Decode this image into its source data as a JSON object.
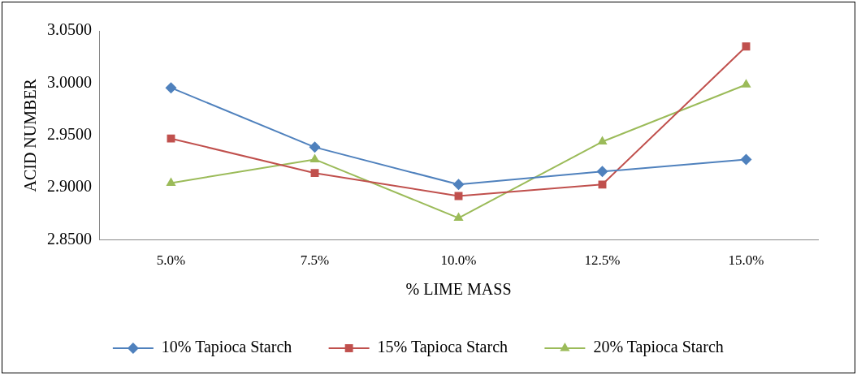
{
  "chart_data": {
    "type": "line",
    "xlabel": "% LIME MASS",
    "ylabel": "ACID NUMBER",
    "categories": [
      "5.0%",
      "7.5%",
      "10.0%",
      "12.5%",
      "15.0%"
    ],
    "series": [
      {
        "name": "10% Tapioca Starch",
        "color": "#4f81bd",
        "marker": "diamond",
        "values": [
          2.9955,
          2.9387,
          2.903,
          2.9154,
          2.927
        ]
      },
      {
        "name": "15% Tapioca Starch",
        "color": "#c0504d",
        "marker": "square",
        "values": [
          2.947,
          2.914,
          2.892,
          2.903,
          3.035
        ]
      },
      {
        "name": "20% Tapioca Starch",
        "color": "#9bbb59",
        "marker": "triangle",
        "values": [
          2.9045,
          2.927,
          2.871,
          2.944,
          2.9986
        ]
      }
    ],
    "ylim": [
      2.85,
      3.05
    ],
    "yticks": [
      {
        "value": 2.85,
        "label": "2.8500"
      },
      {
        "value": 2.9,
        "label": "2.9000"
      },
      {
        "value": 2.95,
        "label": "2.9500"
      },
      {
        "value": 3.0,
        "label": "3.0000"
      },
      {
        "value": 3.05,
        "label": "3.0500"
      }
    ],
    "grid": false,
    "legend": "bottom",
    "line_style": "solid"
  }
}
